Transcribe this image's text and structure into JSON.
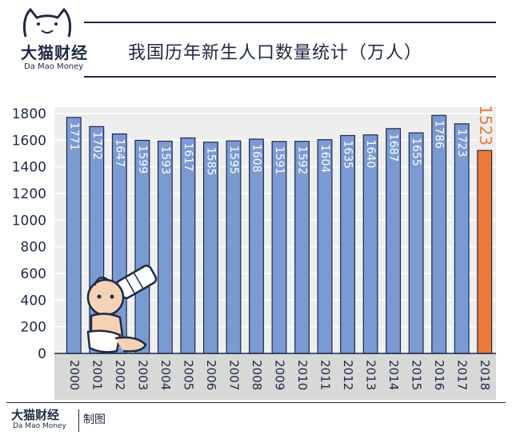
{
  "brand": {
    "name_cn": "大猫财经",
    "name_en": "Da Mao Money"
  },
  "title": "我国历年新生人口数量统计（万人）",
  "footer": {
    "brand_cn": "大猫财经",
    "brand_en": "Da Mao Money",
    "credit": "制图"
  },
  "colors": {
    "bar": "#7a9ad3",
    "highlight": "#ee7a3a",
    "axis": "#1d2a44",
    "xband": "#d8d8d8"
  },
  "chart_data": {
    "type": "bar",
    "categories": [
      "2000",
      "2001",
      "2002",
      "2003",
      "2004",
      "2005",
      "2006",
      "2007",
      "2008",
      "2009",
      "2010",
      "2011",
      "2012",
      "2013",
      "2014",
      "2015",
      "2016",
      "2017",
      "2018"
    ],
    "values": [
      1771,
      1702,
      1647,
      1599,
      1593,
      1617,
      1585,
      1595,
      1608,
      1591,
      1592,
      1604,
      1635,
      1640,
      1687,
      1655,
      1786,
      1723,
      1523
    ],
    "highlight_index": 18,
    "ylim": [
      0,
      1800
    ],
    "yticks": [
      0,
      200,
      400,
      600,
      800,
      1000,
      1200,
      1400,
      1600,
      1800
    ],
    "grid": true
  }
}
